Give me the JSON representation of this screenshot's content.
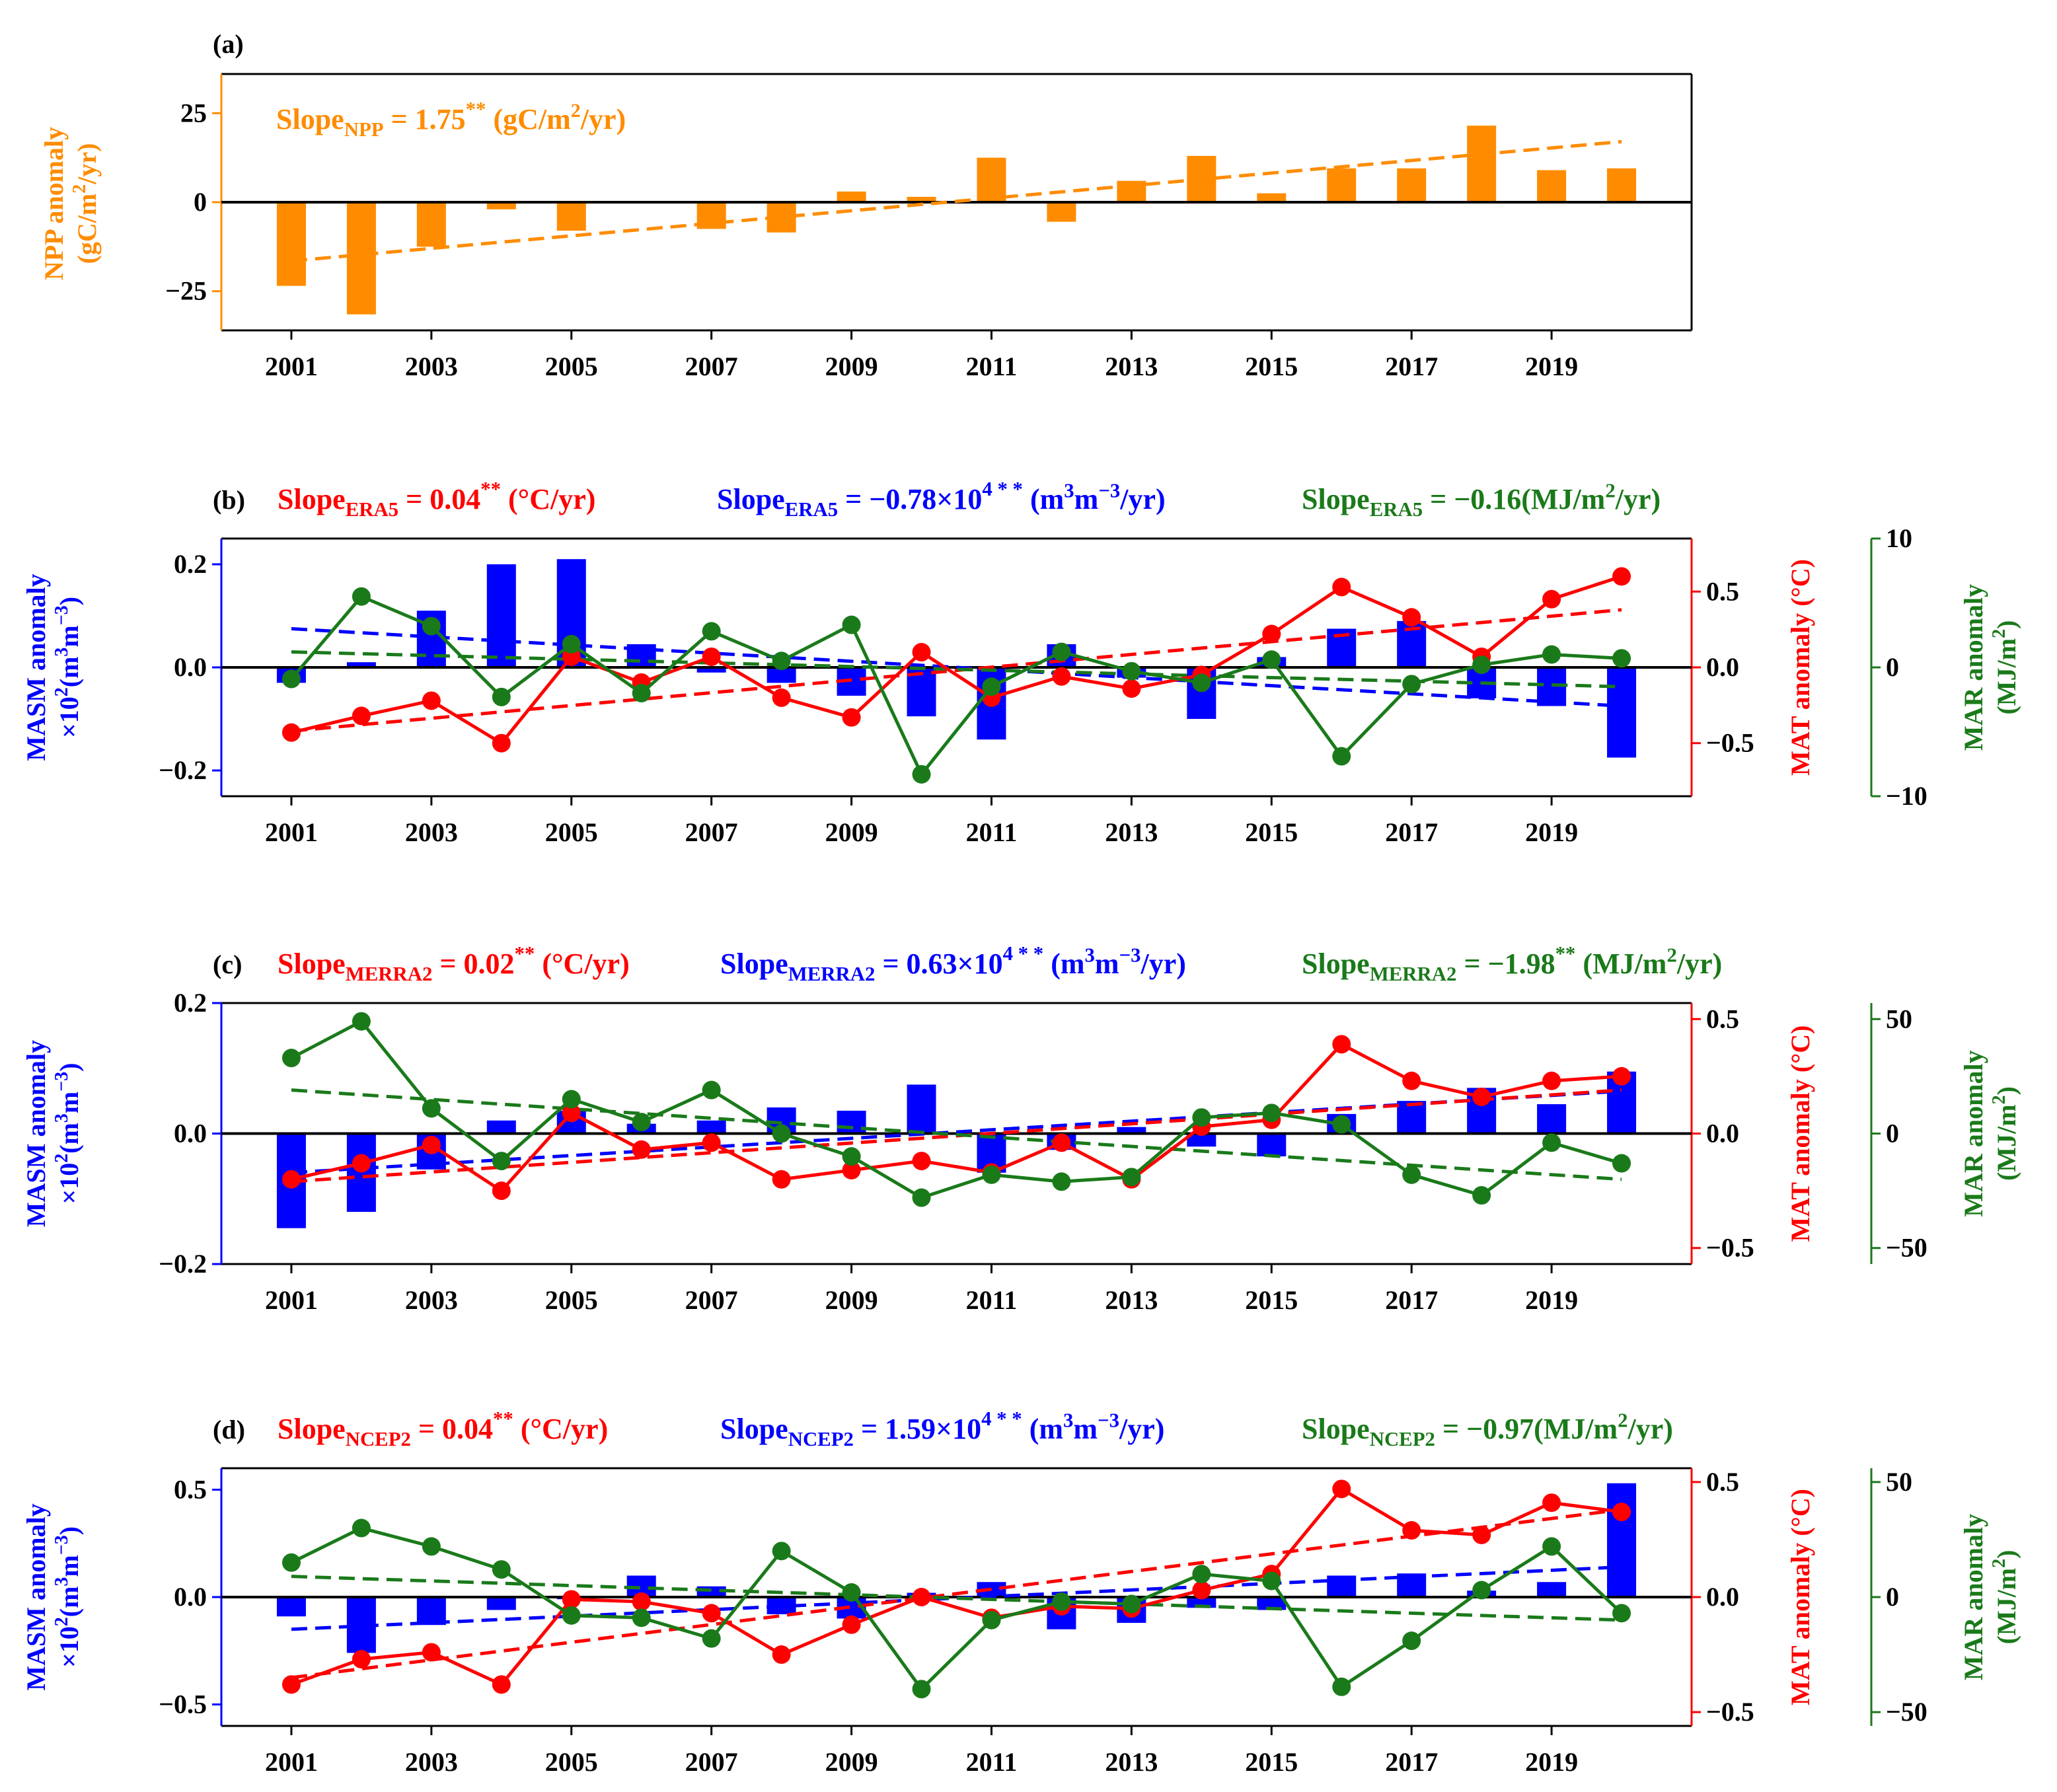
{
  "years": [
    "2001",
    "2002",
    "2003",
    "2004",
    "2005",
    "2006",
    "2007",
    "2008",
    "2009",
    "2010",
    "2011",
    "2012",
    "2013",
    "2014",
    "2015",
    "2016",
    "2017",
    "2018",
    "2019",
    "2020"
  ],
  "x_tick_labels": [
    "2001",
    "2003",
    "2005",
    "2007",
    "2009",
    "2011",
    "2013",
    "2015",
    "2017",
    "2019"
  ],
  "colors": {
    "npp": "#ff8c00",
    "sm": "#0000ff",
    "temp": "#ff0000",
    "rad": "#1a7a1a",
    "axis": "#000000"
  },
  "chart_data": [
    {
      "type": "bar",
      "label": "(a)",
      "x": [
        2001,
        2002,
        2003,
        2004,
        2005,
        2006,
        2007,
        2008,
        2009,
        2010,
        2011,
        2012,
        2013,
        2014,
        2015,
        2016,
        2017,
        2018,
        2019,
        2020
      ],
      "values": [
        -23.5,
        -31.5,
        -12.5,
        -2,
        -8,
        0,
        -7.5,
        -8.5,
        3,
        1.5,
        12.5,
        -5.5,
        6,
        13,
        2.5,
        9.5,
        9.5,
        21.5,
        9,
        9.5
      ],
      "trend": [
        -16.5,
        17.0
      ],
      "ylabel": [
        "NPP anomaly",
        "(gC/m²/yr)"
      ],
      "ylim": [
        -36,
        36
      ],
      "yticks": [
        "25",
        "0",
        "−25"
      ],
      "annotation": "Slope_NPP = 1.75** (gC/m²/yr)"
    },
    {
      "type": "combo",
      "label": "(b)",
      "slopes": [
        "Slope_ERA5 = 0.04** (°C/yr)",
        "Slope_ERA5 = −0.78×10⁴** (m³m⁻³/yr)",
        "Slope_ERA5 = −0.16(MJ/m²/yr)"
      ],
      "sm": {
        "values": [
          -0.03,
          0.01,
          0.11,
          0.2,
          0.21,
          0.045,
          -0.01,
          -0.03,
          -0.055,
          -0.095,
          -0.14,
          0.045,
          -0.02,
          -0.1,
          0.02,
          0.075,
          0.09,
          -0.06,
          -0.075,
          -0.175
        ],
        "trend": [
          0.075,
          -0.075
        ],
        "ylim": [
          -0.25,
          0.25
        ],
        "yticks": [
          "0.2",
          "0.0",
          "−0.2"
        ]
      },
      "temp": {
        "values": [
          -0.43,
          -0.32,
          -0.22,
          -0.5,
          0.07,
          -0.1,
          0.07,
          -0.2,
          -0.33,
          0.1,
          -0.2,
          -0.06,
          -0.14,
          -0.05,
          0.22,
          0.53,
          0.33,
          0.07,
          0.45,
          0.6
        ],
        "trend": [
          -0.42,
          0.38
        ],
        "ylim": [
          -0.85,
          0.85
        ],
        "yticks": [
          "0.5",
          "0.0",
          "−0.5"
        ]
      },
      "rad": {
        "values": [
          -0.9,
          5.5,
          3.2,
          -2.3,
          1.8,
          -2,
          2.8,
          0.5,
          3.3,
          -8.3,
          -1.5,
          1.2,
          -0.3,
          -1.2,
          0.6,
          -6.9,
          -1.3,
          0.2,
          1,
          0.7
        ],
        "trend": [
          1.2,
          -1.5
        ],
        "ylim": [
          -10,
          10
        ],
        "yticks": [
          "10",
          "0",
          "−10"
        ]
      },
      "ylabel_left": [
        "MASM anomaly",
        "×10²(m³m⁻³)"
      ],
      "ylabel_right1": "MAT anomaly (°C)",
      "ylabel_right2": [
        "MAR anomaly",
        "(MJ/m²)"
      ]
    },
    {
      "type": "combo",
      "label": "(c)",
      "slopes": [
        "Slope_MERRA2 = 0.02** (°C/yr)",
        "Slope_MERRA2 = 0.63×10⁴** (m³m⁻³/yr)",
        "Slope_MERRA2 = −1.98** (MJ/m²/yr)"
      ],
      "sm": {
        "values": [
          -0.145,
          -0.12,
          -0.055,
          0.02,
          0.035,
          0.015,
          0.02,
          0.04,
          0.035,
          0.075,
          -0.06,
          -0.025,
          0.01,
          -0.02,
          -0.035,
          0.03,
          0.05,
          0.07,
          0.045,
          0.095
        ],
        "trend": [
          -0.06,
          0.065
        ],
        "ylim": [
          -0.2,
          0.2
        ],
        "yticks": [
          "0.2",
          "0.0",
          "−0.2"
        ]
      },
      "temp": {
        "values": [
          -0.2,
          -0.13,
          -0.05,
          -0.25,
          0.09,
          -0.07,
          -0.04,
          -0.2,
          -0.16,
          -0.12,
          -0.17,
          -0.04,
          -0.2,
          0.03,
          0.06,
          0.39,
          0.23,
          0.16,
          0.23,
          0.25
        ],
        "trend": [
          -0.21,
          0.19
        ],
        "ylim": [
          -0.57,
          0.57
        ],
        "yticks": [
          "0.5",
          "0.0",
          "−0.5"
        ]
      },
      "rad": {
        "values": [
          33,
          49,
          11,
          -12,
          15,
          5,
          19,
          0,
          -10,
          -28,
          -18,
          -21,
          -19,
          7,
          9,
          4,
          -18,
          -27,
          -4,
          -13
        ],
        "trend": [
          19,
          -20
        ],
        "ylim": [
          -57,
          57
        ],
        "yticks": [
          "50",
          "0",
          "−50"
        ]
      },
      "ylabel_left": [
        "MASM anomaly",
        "×10²(m³m⁻³)"
      ],
      "ylabel_right1": "MAT anomaly (°C)",
      "ylabel_right2": [
        "MAR anomaly",
        "(MJ/m²)"
      ]
    },
    {
      "type": "combo",
      "label": "(d)",
      "slopes": [
        "Slope_NCEP2 = 0.04** (°C/yr)",
        "Slope_NCEP2 = 1.59×10⁴** (m³m⁻³/yr)",
        "Slope_NCEP2 = −0.97(MJ/m²/yr)"
      ],
      "sm": {
        "values": [
          -0.09,
          -0.26,
          -0.13,
          -0.06,
          -0.01,
          0.1,
          0.05,
          -0.08,
          -0.1,
          0.02,
          0.07,
          -0.15,
          -0.12,
          -0.05,
          -0.06,
          0.1,
          0.11,
          0.03,
          0.07,
          0.53
        ],
        "trend": [
          -0.15,
          0.14
        ],
        "ylim": [
          -0.6,
          0.6
        ],
        "yticks": [
          "0.5",
          "0.0",
          "−0.5"
        ]
      },
      "temp": {
        "values": [
          -0.38,
          -0.27,
          -0.24,
          -0.38,
          -0.01,
          -0.02,
          -0.07,
          -0.25,
          -0.12,
          0,
          -0.09,
          -0.04,
          -0.05,
          0.03,
          0.1,
          0.47,
          0.29,
          0.27,
          0.41,
          0.37
        ],
        "trend": [
          -0.35,
          0.38
        ],
        "ylim": [
          -0.56,
          0.56
        ],
        "yticks": [
          "0.5",
          "0.0",
          "−0.5"
        ]
      },
      "rad": {
        "values": [
          15,
          30,
          22,
          12,
          -8,
          -9,
          -18,
          20,
          2,
          -40,
          -10,
          -2,
          -3,
          10,
          7,
          -39,
          -19,
          3,
          22,
          -7
        ],
        "trend": [
          9,
          -10
        ],
        "ylim": [
          -56,
          56
        ],
        "yticks": [
          "50",
          "0",
          "−50"
        ]
      },
      "ylabel_left": [
        "MASM anomaly",
        "×10²(m³m⁻³)"
      ],
      "ylabel_right1": "MAT anomaly (°C)",
      "ylabel_right2": [
        "MAR anomaly",
        "(MJ/m²)"
      ]
    }
  ]
}
